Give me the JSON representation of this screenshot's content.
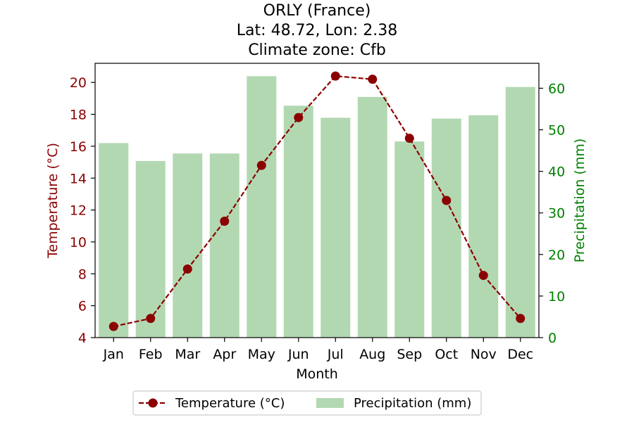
{
  "chart_data": {
    "type": "bar+line",
    "title": [
      "ORLY (France)",
      "Lat: 48.72, Lon: 2.38",
      "Climate zone: Cfb"
    ],
    "xlabel": "Month",
    "categories": [
      "Jan",
      "Feb",
      "Mar",
      "Apr",
      "May",
      "Jun",
      "Jul",
      "Aug",
      "Sep",
      "Oct",
      "Nov",
      "Dec"
    ],
    "y_left": {
      "label": "Temperature (°C)",
      "lim": [
        4,
        21.2
      ],
      "ticks": [
        4,
        6,
        8,
        10,
        12,
        14,
        16,
        18,
        20
      ],
      "color": "#8b0000"
    },
    "y_right": {
      "label": "Precipitation (mm)",
      "lim": [
        0,
        66
      ],
      "ticks": [
        0,
        10,
        20,
        30,
        40,
        50,
        60
      ],
      "color": "#008000"
    },
    "series": [
      {
        "name": "Temperature (°C)",
        "type": "line",
        "axis": "left",
        "color": "#8b0000",
        "style": "dashed",
        "marker": "circle",
        "values": [
          4.7,
          5.2,
          8.3,
          11.3,
          14.8,
          17.8,
          20.4,
          20.2,
          16.5,
          12.6,
          7.9,
          5.2
        ]
      },
      {
        "name": "Precipitation (mm)",
        "type": "bar",
        "axis": "right",
        "color": "#b2d8b2",
        "values": [
          46.8,
          42.5,
          44.3,
          44.3,
          62.9,
          55.8,
          52.9,
          57.9,
          47.2,
          52.7,
          53.5,
          60.3
        ]
      }
    ],
    "legend": {
      "placement": "bottom-center",
      "entries": [
        "Temperature (°C)",
        "Precipitation (mm)"
      ]
    },
    "grid": false
  }
}
